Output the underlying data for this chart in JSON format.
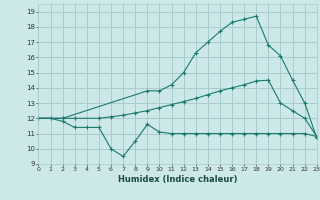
{
  "xlabel": "Humidex (Indice chaleur)",
  "bg_color": "#cce8e8",
  "grid_color": "#aacccc",
  "line_color": "#1a7a6e",
  "line1_x": [
    0,
    1,
    2,
    3,
    4,
    5,
    6,
    7,
    8,
    9,
    10,
    11,
    12,
    13,
    14,
    15,
    16,
    17,
    18,
    19,
    20,
    21,
    22,
    23
  ],
  "line1_y": [
    12,
    12,
    11.8,
    11.4,
    11.4,
    11.4,
    10.0,
    9.5,
    10.5,
    11.6,
    11.1,
    11.0,
    11.0,
    11.0,
    11.0,
    11.0,
    11.0,
    11.0,
    11.0,
    11.0,
    11.0,
    11.0,
    11.0,
    10.8
  ],
  "line2_x": [
    0,
    2,
    3,
    5,
    6,
    7,
    8,
    9,
    10,
    11,
    12,
    13,
    14,
    15,
    16,
    17,
    18,
    19,
    20,
    21,
    22,
    23
  ],
  "line2_y": [
    12,
    12,
    12,
    12,
    12.1,
    12.2,
    12.35,
    12.5,
    12.7,
    12.9,
    13.1,
    13.3,
    13.55,
    13.8,
    14.0,
    14.2,
    14.45,
    14.5,
    13.0,
    12.5,
    12.0,
    10.8
  ],
  "line3_x": [
    0,
    2,
    9,
    10,
    11,
    12,
    13,
    14,
    15,
    16,
    17,
    18,
    19,
    20,
    21,
    22,
    23
  ],
  "line3_y": [
    12,
    12,
    13.8,
    13.8,
    14.2,
    15.0,
    16.3,
    17.0,
    17.7,
    18.3,
    18.5,
    18.7,
    16.8,
    16.1,
    14.5,
    13.0,
    10.7
  ],
  "xlim": [
    0,
    23
  ],
  "ylim": [
    9,
    19.5
  ],
  "yticks": [
    9,
    10,
    11,
    12,
    13,
    14,
    15,
    16,
    17,
    18,
    19
  ],
  "xticks": [
    0,
    1,
    2,
    3,
    4,
    5,
    6,
    7,
    8,
    9,
    10,
    11,
    12,
    13,
    14,
    15,
    16,
    17,
    18,
    19,
    20,
    21,
    22,
    23
  ]
}
